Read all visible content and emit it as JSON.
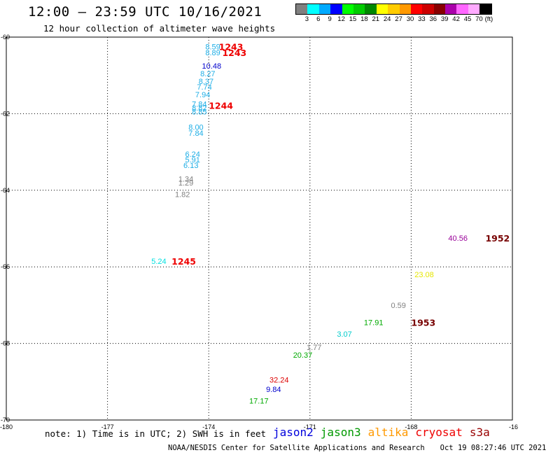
{
  "header": {
    "title": "12:00 – 23:59 UTC 10/16/2021",
    "subtitle": "12 hour collection of altimeter wave heights"
  },
  "legend": {
    "unit": "(ft)",
    "swatches": [
      "#808080",
      "#00ffff",
      "#00aaff",
      "#0000ff",
      "#00ff00",
      "#00cc00",
      "#008800",
      "#ffff00",
      "#ffcc00",
      "#ff9900",
      "#ff0000",
      "#cc0000",
      "#880000",
      "#aa00aa",
      "#ff66ff",
      "#ffaaff",
      "#000000"
    ],
    "labels": [
      "3",
      "6",
      "9",
      "12",
      "15",
      "18",
      "21",
      "24",
      "27",
      "30",
      "33",
      "36",
      "39",
      "42",
      "45",
      "70"
    ]
  },
  "axes": {
    "lat_labels": [
      "-60",
      "-62",
      "-64",
      "-66",
      "-68",
      "-70"
    ],
    "lon_labels": [
      "-180",
      "-177",
      "-174",
      "-171",
      "-168",
      "-16"
    ]
  },
  "observations": [
    {
      "value": "8.59",
      "color": "#1eaee6",
      "lon": -174.1,
      "lat": -60.25
    },
    {
      "value": "8.89",
      "color": "#1eaee6",
      "lon": -174.1,
      "lat": -60.4
    },
    {
      "value": "10.48",
      "color": "#0000cc",
      "lon": -174.2,
      "lat": -60.75
    },
    {
      "value": "8.27",
      "color": "#1eaee6",
      "lon": -174.25,
      "lat": -60.95
    },
    {
      "value": "8.37",
      "color": "#1eaee6",
      "lon": -174.3,
      "lat": -61.15
    },
    {
      "value": "7.74",
      "color": "#1eaee6",
      "lon": -174.35,
      "lat": -61.3
    },
    {
      "value": "7.94",
      "color": "#1eaee6",
      "lon": -174.4,
      "lat": -61.5
    },
    {
      "value": "7.84",
      "color": "#1eaee6",
      "lon": -174.5,
      "lat": -61.75
    },
    {
      "value": "8.82",
      "color": "#1eaee6",
      "lon": -174.5,
      "lat": -61.85
    },
    {
      "value": "8.85",
      "color": "#1eaee6",
      "lon": -174.5,
      "lat": -61.95
    },
    {
      "value": "8.00",
      "color": "#1eaee6",
      "lon": -174.6,
      "lat": -62.35
    },
    {
      "value": "7.84",
      "color": "#1eaee6",
      "lon": -174.6,
      "lat": -62.5
    },
    {
      "value": "6.24",
      "color": "#1eaee6",
      "lon": -174.7,
      "lat": -63.05
    },
    {
      "value": "5.91",
      "color": "#1eaee6",
      "lon": -174.7,
      "lat": -63.2
    },
    {
      "value": "6.13",
      "color": "#1eaee6",
      "lon": -174.75,
      "lat": -63.35
    },
    {
      "value": "1.34",
      "color": "#808080",
      "lon": -174.9,
      "lat": -63.7
    },
    {
      "value": "1.29",
      "color": "#808080",
      "lon": -174.9,
      "lat": -63.8
    },
    {
      "value": "1.82",
      "color": "#808080",
      "lon": -175.0,
      "lat": -64.1
    },
    {
      "value": "5.24",
      "color": "#00e0e0",
      "lon": -175.7,
      "lat": -65.85
    },
    {
      "value": "40.56",
      "color": "#990099",
      "lon": -166.9,
      "lat": -65.25
    },
    {
      "value": "23.08",
      "color": "#e6e600",
      "lon": -167.9,
      "lat": -66.2
    },
    {
      "value": "0.59",
      "color": "#808080",
      "lon": -168.6,
      "lat": -67.0
    },
    {
      "value": "17.91",
      "color": "#00aa00",
      "lon": -169.4,
      "lat": -67.45
    },
    {
      "value": "3.07",
      "color": "#00cccc",
      "lon": -170.2,
      "lat": -67.75
    },
    {
      "value": "1.77",
      "color": "#808080",
      "lon": -171.1,
      "lat": -68.1
    },
    {
      "value": "20.37",
      "color": "#00aa00",
      "lon": -171.5,
      "lat": -68.3
    },
    {
      "value": "32.24",
      "color": "#dd0000",
      "lon": -172.2,
      "lat": -68.95
    },
    {
      "value": "9.84",
      "color": "#0000cc",
      "lon": -172.3,
      "lat": -69.2
    },
    {
      "value": "17.17",
      "color": "#00aa00",
      "lon": -172.8,
      "lat": -69.5
    }
  ],
  "times": [
    {
      "value": "1243",
      "color": "#ee0000",
      "lon": -173.7,
      "lat": -60.25
    },
    {
      "value": "1243",
      "color": "#ee0000",
      "lon": -173.6,
      "lat": -60.4
    },
    {
      "value": "1244",
      "color": "#ee0000",
      "lon": -174.0,
      "lat": -61.78
    },
    {
      "value": "1245",
      "color": "#ee0000",
      "lon": -175.1,
      "lat": -65.85
    },
    {
      "value": "1952",
      "color": "#770000",
      "lon": -165.8,
      "lat": -65.25
    },
    {
      "value": "1953",
      "color": "#770000",
      "lon": -168.0,
      "lat": -67.45
    }
  ],
  "footer": {
    "note": "note: 1) Time is in UTC; 2) SWH is in feet",
    "satellites": [
      {
        "name": "jason2",
        "color": "#0000dd"
      },
      {
        "name": "jason3",
        "color": "#009900"
      },
      {
        "name": "altika",
        "color": "#ff9900"
      },
      {
        "name": "cryosat",
        "color": "#ee0000"
      },
      {
        "name": "s3a",
        "color": "#990000"
      }
    ],
    "credit": "NOAA/NESDIS Center for Satellite Applications and Research",
    "timestamp": "Oct 19 08:27:46 UTC 2021"
  }
}
